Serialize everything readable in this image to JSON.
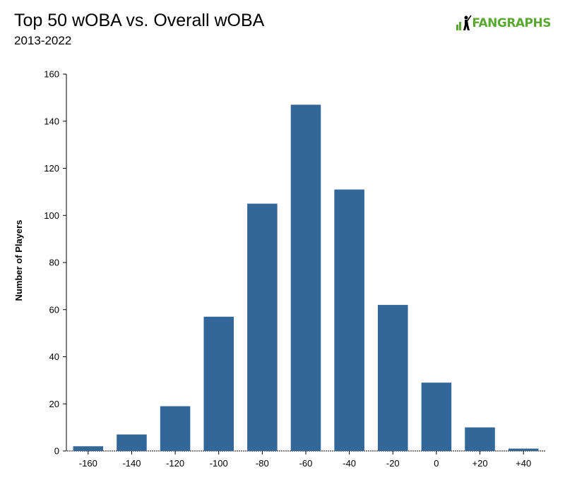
{
  "header": {
    "title": "Top 50 wOBA vs. Overall wOBA",
    "subtitle": "2013-2022"
  },
  "logo": {
    "text_fan": "FAN",
    "text_graphs": "GRAPHS",
    "icon": "batter-icon",
    "color": "#5aa832"
  },
  "colors": {
    "bar": "#336699",
    "axis": "#000000"
  },
  "chart_data": {
    "type": "bar",
    "title": "Top 50 wOBA vs. Overall wOBA",
    "subtitle": "2013-2022",
    "xlabel": "",
    "ylabel": "Number of Players",
    "categories": [
      "-160",
      "-140",
      "-120",
      "-100",
      "-80",
      "-60",
      "-40",
      "-20",
      "0",
      "+20",
      "+40"
    ],
    "values": [
      2,
      7,
      19,
      57,
      105,
      147,
      111,
      62,
      29,
      10,
      1
    ],
    "ylim": [
      0,
      160
    ],
    "yticks": [
      0,
      20,
      40,
      60,
      80,
      100,
      120,
      140,
      160
    ],
    "grid": false,
    "legend": "none"
  }
}
